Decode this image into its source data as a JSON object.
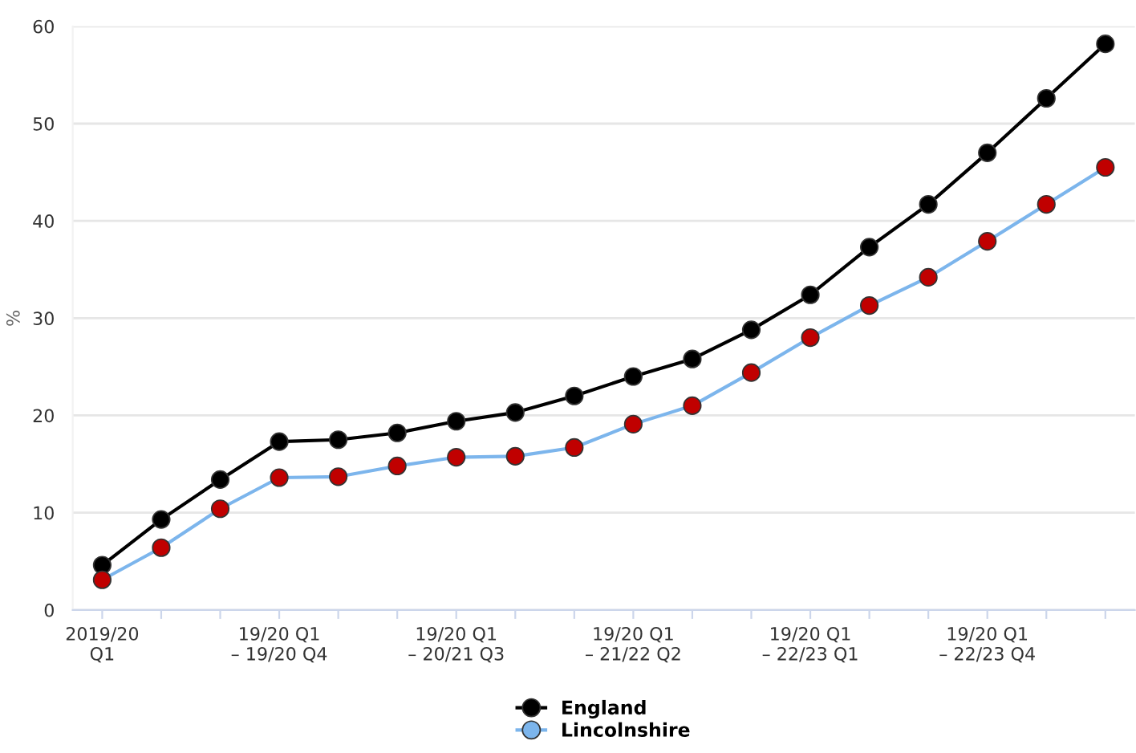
{
  "chart_data": {
    "type": "line",
    "ylabel": "%",
    "categories": [
      "2019/20\nQ1",
      null,
      null,
      "19/20 Q1\n– 19/20 Q4",
      null,
      null,
      "19/20 Q1\n– 20/21 Q3",
      null,
      null,
      "19/20 Q1\n– 21/22 Q2",
      null,
      null,
      "19/20 Q1\n– 22/23 Q1",
      null,
      null,
      "19/20 Q1\n– 22/23 Q4",
      null,
      null
    ],
    "series": [
      {
        "name": "England",
        "color": "#000000",
        "colors": [
          "#000000",
          "#000000",
          "#000000",
          "#000000",
          "#000000",
          "#000000",
          "#000000",
          "#000000",
          "#000000",
          "#000000",
          "#000000",
          "#000000",
          "#000000",
          "#000000",
          "#000000",
          "#000000",
          "#000000",
          "#000000"
        ],
        "values": [
          4.6,
          9.3,
          13.4,
          17.3,
          17.5,
          18.2,
          19.4,
          20.3,
          22.0,
          24.0,
          25.8,
          28.8,
          32.4,
          37.3,
          41.7,
          47.0,
          52.6,
          58.2
        ]
      },
      {
        "name": "Lincolnshire",
        "color": "#7cb5ec",
        "colors": [
          "#c00000",
          "#c00000",
          "#c00000",
          "#c00000",
          "#c00000",
          "#c00000",
          "#c00000",
          "#c00000",
          "#c00000",
          "#c00000",
          "#c00000",
          "#c00000",
          "#c00000",
          "#c00000",
          "#c00000",
          "#c00000",
          "#c00000",
          "#c00000"
        ],
        "values": [
          3.1,
          6.4,
          10.4,
          13.6,
          13.7,
          14.8,
          15.7,
          15.8,
          16.7,
          19.1,
          21.0,
          24.4,
          28.0,
          31.3,
          34.2,
          37.9,
          41.7,
          45.5
        ]
      }
    ],
    "ylim": [
      0,
      60
    ],
    "yticks": [
      0,
      10,
      20,
      30,
      40,
      50,
      60
    ],
    "grid": "y",
    "legend": "bottom",
    "marker": "circle",
    "line_style": "solid"
  }
}
